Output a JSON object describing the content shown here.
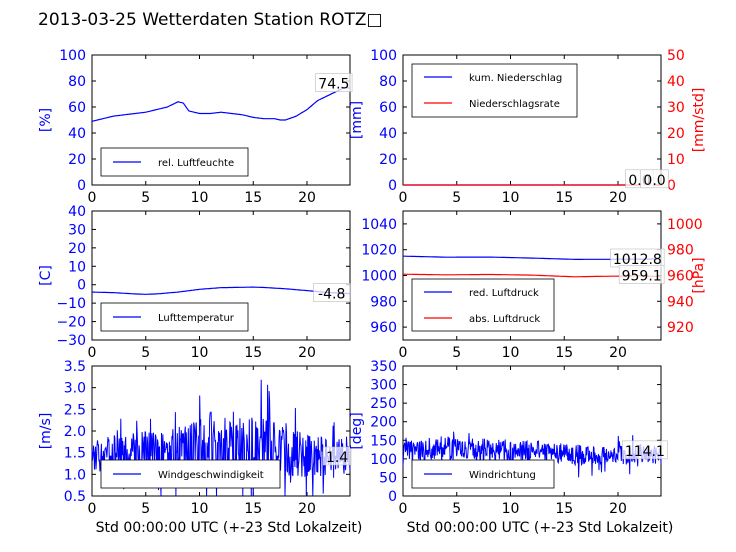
{
  "figure": {
    "title": "2013-03-25 Wetterdaten Station ROTZ□"
  },
  "chart_data": [
    {
      "type": "line",
      "panel": "humidity",
      "title": "",
      "xlabel": "",
      "ylabel": "[%]",
      "xlim": [
        0,
        24
      ],
      "ylim": [
        0,
        100
      ],
      "xticks": [
        "0",
        "5",
        "10",
        "15",
        "20"
      ],
      "yticks": [
        "0",
        "20",
        "40",
        "60",
        "80",
        "100"
      ],
      "legend": "lower-left",
      "grid": false,
      "series": [
        {
          "name": "rel. Luftfeuchte",
          "color": "#0000ff",
          "x": [
            0,
            1,
            2,
            3,
            4,
            5,
            6,
            7,
            7.5,
            8,
            8.5,
            9,
            10,
            11,
            12,
            13,
            14,
            15,
            16,
            17,
            17.5,
            18,
            19,
            20,
            21,
            22,
            23,
            23.5,
            24
          ],
          "y": [
            49,
            51,
            53,
            54,
            55,
            56,
            58,
            60,
            62,
            64,
            63,
            57,
            55,
            55,
            56,
            55,
            54,
            52,
            51,
            51,
            50,
            50,
            53,
            58,
            65,
            69,
            73,
            75,
            74.5
          ]
        }
      ],
      "annotations": [
        {
          "x": 22.5,
          "y": 78,
          "text": "74.5"
        }
      ]
    },
    {
      "type": "line",
      "panel": "precipitation",
      "title": "",
      "xlabel": "",
      "ylabel": "[mm]",
      "ylabel_right": "[mm/std]",
      "xlim": [
        0,
        24
      ],
      "ylim": [
        0,
        100
      ],
      "ylim_right": [
        0,
        50
      ],
      "xticks": [
        "0",
        "5",
        "10",
        "15",
        "20"
      ],
      "yticks": [
        "0",
        "20",
        "40",
        "60",
        "80",
        "100"
      ],
      "yticks_right": [
        "0",
        "10",
        "20",
        "30",
        "40",
        "50"
      ],
      "legend": "upper-left",
      "grid": false,
      "series": [
        {
          "name": "kum. Niederschlag",
          "color": "#0000ff",
          "x": [
            0,
            24
          ],
          "y": [
            0,
            0
          ]
        },
        {
          "name": "Niederschlagsrate",
          "color": "#ff0000",
          "x": [
            0,
            24
          ],
          "y": [
            0,
            0
          ]
        }
      ],
      "annotations": [
        {
          "x": 22,
          "y": 4,
          "text": "0.0"
        },
        {
          "x": 23.4,
          "y": 4,
          "text": "0.0"
        }
      ]
    },
    {
      "type": "line",
      "panel": "temperature",
      "title": "",
      "xlabel": "",
      "ylabel": "[C]",
      "xlim": [
        0,
        24
      ],
      "ylim": [
        -30,
        40
      ],
      "xticks": [
        "0",
        "5",
        "10",
        "15",
        "20"
      ],
      "yticks": [
        "−30",
        "−20",
        "−10",
        "0",
        "10",
        "20",
        "30",
        "40"
      ],
      "legend": "lower-left",
      "grid": false,
      "series": [
        {
          "name": "Lufttemperatur",
          "color": "#0000ff",
          "x": [
            0,
            2,
            4,
            5,
            6,
            8,
            10,
            12,
            14,
            15,
            16,
            18,
            20,
            22,
            24
          ],
          "y": [
            -4,
            -4.3,
            -5,
            -5.2,
            -5,
            -4,
            -2.5,
            -1.6,
            -1.4,
            -1.3,
            -1.5,
            -2.2,
            -3.2,
            -4.3,
            -4.8
          ]
        }
      ],
      "annotations": [
        {
          "x": 22.3,
          "y": -4.8,
          "text": "-4.8"
        }
      ]
    },
    {
      "type": "line",
      "panel": "pressure",
      "title": "",
      "xlabel": "",
      "ylabel": "",
      "ylabel_right": "[hPa]",
      "xlim": [
        0,
        24
      ],
      "ylim": [
        950,
        1050
      ],
      "ylim_right": [
        910,
        1010
      ],
      "xticks": [
        "0",
        "5",
        "10",
        "15",
        "20"
      ],
      "yticks": [
        "960",
        "980",
        "1000",
        "1020",
        "1040"
      ],
      "yticks_right": [
        "920",
        "940",
        "960",
        "980",
        "1000"
      ],
      "legend": "lower-left",
      "grid": false,
      "series": [
        {
          "name": "red. Luftdruck",
          "color": "#0000ff",
          "axis": "left",
          "x": [
            0,
            4,
            8,
            12,
            16,
            20,
            24
          ],
          "y": [
            1015,
            1014.2,
            1014.3,
            1013.5,
            1012.5,
            1012.6,
            1012.8
          ]
        },
        {
          "name": "abs. Luftdruck",
          "color": "#ff0000",
          "axis": "right",
          "x": [
            0,
            4,
            8,
            12,
            15,
            16,
            18,
            20,
            22,
            24
          ],
          "y": [
            961,
            960.5,
            960.8,
            960.3,
            959.3,
            959,
            959.3,
            959.5,
            959.8,
            959.1
          ]
        }
      ],
      "annotations": [
        {
          "x": 21.8,
          "y": 1012.8,
          "text": "1012.8"
        },
        {
          "x": 22.2,
          "y": 1000,
          "text": "959.1"
        }
      ]
    },
    {
      "type": "line",
      "panel": "wind-speed",
      "title": "",
      "xlabel": "Std 00:00:00 UTC (+-23 Std Lokalzeit)",
      "ylabel": "[m/s]",
      "xlim": [
        0,
        24
      ],
      "ylim": [
        0.5,
        3.5
      ],
      "xticks": [
        "0",
        "5",
        "10",
        "15",
        "20"
      ],
      "yticks": [
        "0.5",
        "1.0",
        "1.5",
        "2.0",
        "2.5",
        "3.0",
        "3.5"
      ],
      "legend": "lower-center",
      "grid": false,
      "noisy": true,
      "series": [
        {
          "name": "Windgeschwindigkeit",
          "color": "#0000ff",
          "x": [
            0,
            2,
            4,
            6,
            8,
            10,
            12,
            14,
            16,
            18,
            20,
            22,
            24
          ],
          "y": [
            1.4,
            1.45,
            1.5,
            1.45,
            1.5,
            1.6,
            1.65,
            1.6,
            1.6,
            1.5,
            1.45,
            1.4,
            1.4
          ],
          "spread": [
            0.35,
            0.45,
            0.55,
            0.55,
            0.6,
            0.8,
            0.85,
            0.75,
            0.75,
            0.6,
            0.5,
            0.45,
            0.4
          ]
        }
      ],
      "annotations": [
        {
          "x": 22.8,
          "y": 1.4,
          "text": "1.4"
        }
      ]
    },
    {
      "type": "line",
      "panel": "wind-direction",
      "title": "",
      "xlabel": "Std 00:00:00 UTC (+-23 Std Lokalzeit)",
      "ylabel": "[deg]",
      "xlim": [
        0,
        24
      ],
      "ylim": [
        0,
        360
      ],
      "xticks": [
        "0",
        "5",
        "10",
        "15",
        "20"
      ],
      "yticks": [
        "0",
        "50",
        "100",
        "150",
        "200",
        "250",
        "300",
        "350"
      ],
      "legend": "lower-left",
      "grid": false,
      "noisy": true,
      "series": [
        {
          "name": "Windrichtung",
          "color": "#0000ff",
          "x": [
            0,
            2,
            4,
            6,
            8,
            10,
            12,
            14,
            16,
            18,
            20,
            22,
            24
          ],
          "y": [
            125,
            130,
            135,
            135,
            130,
            125,
            125,
            120,
            115,
            110,
            115,
            114,
            114.1
          ],
          "spread": [
            25,
            30,
            32,
            32,
            30,
            28,
            28,
            30,
            30,
            28,
            25,
            25,
            25
          ]
        }
      ],
      "annotations": [
        {
          "x": 22.5,
          "y": 125,
          "text": "114.1"
        }
      ]
    }
  ]
}
